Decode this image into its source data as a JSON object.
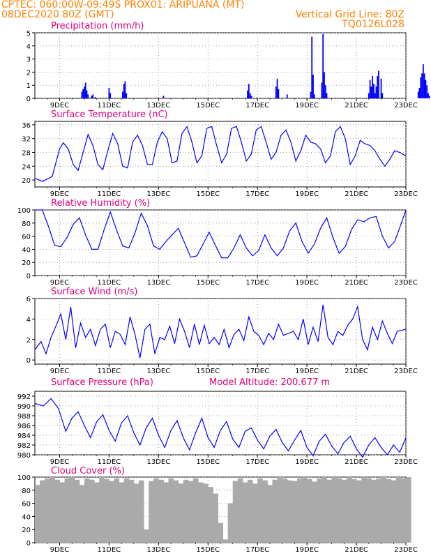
{
  "header": {
    "line1": "CPTEC:   060:00W-09:49S   PROX01: ARIPUANA (MT)",
    "line2_left": "08DEC2020 80Z (GMT)",
    "line2_right": "Vertical Grid Line: 80Z",
    "line3_right": "TQ0126L028"
  },
  "colors": {
    "header": "#ff7f00",
    "title": "#e0007a",
    "line": "#0000ff",
    "bar": "#0000ff",
    "cloud": "#aaaaaa"
  },
  "x_ticks": [
    "9DEC",
    "11DEC",
    "13DEC",
    "15DEC",
    "17DEC",
    "19DEC",
    "21DEC",
    "23DEC"
  ],
  "panels": {
    "precip": {
      "title": "Precipitation (mm/h)"
    },
    "temp": {
      "title": "Surface Temperature (nC)"
    },
    "rh": {
      "title": "Relative Humidity (%)"
    },
    "wind": {
      "title": "Surface Wind (m/s)"
    },
    "pres": {
      "title": "Surface Pressure (hPa)",
      "extra": "Model Altitude: 200.677 m"
    },
    "cloud": {
      "title": "Cloud Cover (%)"
    }
  },
  "chart_data": [
    {
      "id": "precip",
      "type": "bar",
      "title": "Precipitation (mm/h)",
      "ylim": [
        0,
        5
      ],
      "yticks": [
        "0",
        "1",
        "2",
        "3",
        "4",
        "5"
      ],
      "x_unit": "day offset from 8DEC2020 00Z",
      "x": [
        1.9,
        1.95,
        2.0,
        2.05,
        2.1,
        2.15,
        2.3,
        2.35,
        2.45,
        3.0,
        3.05,
        3.55,
        3.6,
        3.65,
        3.7,
        5.2,
        8.6,
        8.65,
        8.7,
        8.75,
        9.75,
        9.8,
        9.85,
        10.2,
        11.15,
        11.2,
        11.25,
        11.3,
        11.6,
        11.65,
        11.7,
        11.75,
        11.8,
        13.5,
        13.55,
        13.6,
        13.65,
        13.7,
        13.75,
        13.8,
        13.85,
        13.9,
        14.0,
        14.05,
        15.5,
        15.55,
        15.6,
        15.65,
        15.7,
        15.75,
        15.8,
        15.85,
        15.9,
        15.95
      ],
      "values": [
        0.5,
        0.7,
        0.9,
        1.2,
        0.6,
        0.3,
        0.2,
        0.3,
        0.1,
        0.8,
        0.4,
        0.5,
        1.1,
        1.3,
        0.4,
        0.2,
        0.6,
        1.1,
        0.4,
        0.2,
        0.9,
        1.5,
        0.7,
        0.3,
        0.5,
        4.7,
        1.8,
        0.3,
        1.2,
        4.9,
        2.0,
        1.0,
        0.4,
        0.4,
        1.4,
        0.9,
        1.7,
        1.1,
        0.4,
        0.9,
        1.7,
        2.1,
        1.5,
        0.4,
        0.5,
        0.8,
        1.6,
        1.9,
        2.6,
        1.9,
        1.4,
        1.0,
        0.4,
        0.2
      ]
    },
    {
      "id": "temp",
      "type": "line",
      "title": "Surface Temperature (nC)",
      "ylim": [
        18,
        37
      ],
      "yticks": [
        "20",
        "24",
        "28",
        "32",
        "36"
      ],
      "x": [
        0,
        0.3,
        0.7,
        1.0,
        1.15,
        1.35,
        1.55,
        1.75,
        1.95,
        2.15,
        2.35,
        2.55,
        2.75,
        2.95,
        3.15,
        3.35,
        3.55,
        3.75,
        3.95,
        4.15,
        4.35,
        4.55,
        4.75,
        4.95,
        5.15,
        5.35,
        5.55,
        5.75,
        5.95,
        6.15,
        6.35,
        6.55,
        6.75,
        6.95,
        7.15,
        7.35,
        7.55,
        7.75,
        7.95,
        8.15,
        8.35,
        8.55,
        8.75,
        8.95,
        9.15,
        9.35,
        9.55,
        9.75,
        9.95,
        10.15,
        10.35,
        10.55,
        10.75,
        10.95,
        11.15,
        11.35,
        11.55,
        11.75,
        11.95,
        12.15,
        12.35,
        12.55,
        12.75,
        12.95,
        13.15,
        13.35,
        13.55,
        13.75,
        13.95,
        14.15,
        14.35,
        14.55,
        14.75,
        15.0
      ],
      "values": [
        20.5,
        19.6,
        21.0,
        29.0,
        30.8,
        29.0,
        24.5,
        22.8,
        28.0,
        33.2,
        30.0,
        24.5,
        23.0,
        28.5,
        33.5,
        30.5,
        24.0,
        23.5,
        31.0,
        33.0,
        30.0,
        24.5,
        24.5,
        31.0,
        34.0,
        32.0,
        25.0,
        25.5,
        33.5,
        35.5,
        31.0,
        25.0,
        27.0,
        35.0,
        35.5,
        30.0,
        25.0,
        27.5,
        35.0,
        35.5,
        31.0,
        25.5,
        27.5,
        34.5,
        35.5,
        31.0,
        26.0,
        28.0,
        33.0,
        34.5,
        31.0,
        25.5,
        28.5,
        33.0,
        31.0,
        30.5,
        29.0,
        25.0,
        27.0,
        34.0,
        35.5,
        32.0,
        24.5,
        27.0,
        31.5,
        30.5,
        30.0,
        28.5,
        26.0,
        24.0,
        26.0,
        28.5,
        28.0,
        27.0
      ]
    },
    {
      "id": "rh",
      "type": "line",
      "title": "Relative Humidity (%)",
      "ylim": [
        0,
        100
      ],
      "yticks": [
        "0",
        "20",
        "40",
        "60",
        "80",
        "100"
      ],
      "x": [
        0,
        0.3,
        0.55,
        0.8,
        1.05,
        1.3,
        1.55,
        1.8,
        2.05,
        2.3,
        2.55,
        2.8,
        3.05,
        3.3,
        3.55,
        3.8,
        4.05,
        4.3,
        4.55,
        4.8,
        5.05,
        5.3,
        5.55,
        5.8,
        6.05,
        6.3,
        6.55,
        6.8,
        7.05,
        7.3,
        7.55,
        7.8,
        8.05,
        8.3,
        8.55,
        8.8,
        9.05,
        9.3,
        9.55,
        9.8,
        10.05,
        10.3,
        10.55,
        10.8,
        11.05,
        11.3,
        11.55,
        11.8,
        12.05,
        12.3,
        12.55,
        12.8,
        13.05,
        13.3,
        13.55,
        13.8,
        14.05,
        14.3,
        14.55,
        14.8,
        15.0
      ],
      "values": [
        100,
        100,
        75,
        46,
        44,
        58,
        78,
        88,
        62,
        40,
        40,
        70,
        97,
        70,
        45,
        42,
        65,
        95,
        76,
        45,
        40,
        52,
        62,
        72,
        50,
        28,
        30,
        48,
        66,
        46,
        27,
        27,
        42,
        62,
        42,
        30,
        38,
        62,
        42,
        30,
        42,
        68,
        80,
        52,
        34,
        48,
        72,
        88,
        58,
        34,
        44,
        70,
        85,
        82,
        88,
        90,
        60,
        42,
        52,
        78,
        100
      ]
    },
    {
      "id": "wind",
      "type": "line",
      "title": "Surface Wind (m/s)",
      "ylim": [
        -0.4,
        6
      ],
      "yticks": [
        "0",
        "2",
        "4",
        "6"
      ],
      "x": [
        0,
        0.25,
        0.45,
        0.65,
        0.85,
        1.05,
        1.25,
        1.45,
        1.65,
        1.85,
        2.05,
        2.25,
        2.45,
        2.65,
        2.85,
        3.05,
        3.25,
        3.45,
        3.65,
        3.85,
        4.05,
        4.25,
        4.45,
        4.65,
        4.85,
        5.05,
        5.25,
        5.45,
        5.65,
        5.85,
        6.05,
        6.25,
        6.45,
        6.65,
        6.85,
        7.05,
        7.25,
        7.45,
        7.65,
        7.85,
        8.05,
        8.25,
        8.45,
        8.65,
        8.85,
        9.05,
        9.25,
        9.45,
        9.65,
        9.85,
        10.05,
        10.25,
        10.45,
        10.65,
        10.85,
        11.05,
        11.25,
        11.45,
        11.65,
        11.85,
        12.05,
        12.25,
        12.45,
        12.65,
        12.85,
        13.05,
        13.25,
        13.45,
        13.65,
        13.85,
        14.05,
        14.25,
        14.45,
        14.65,
        15.0
      ],
      "values": [
        1.0,
        1.8,
        0.6,
        2.2,
        3.3,
        4.5,
        2.0,
        5.2,
        1.2,
        3.6,
        2.2,
        3.0,
        1.4,
        3.0,
        3.5,
        1.2,
        2.8,
        2.5,
        1.5,
        4.2,
        2.5,
        0.2,
        3.0,
        3.5,
        0.6,
        2.2,
        2.0,
        3.3,
        1.6,
        4.0,
        2.8,
        1.2,
        3.5,
        1.5,
        3.4,
        1.6,
        2.2,
        1.5,
        3.0,
        1.2,
        2.5,
        3.0,
        1.9,
        4.2,
        2.8,
        2.4,
        1.5,
        2.6,
        2.0,
        3.5,
        2.4,
        2.6,
        2.8,
        2.0,
        4.0,
        1.5,
        3.2,
        1.8,
        5.4,
        2.2,
        1.5,
        2.8,
        2.4,
        3.4,
        4.0,
        5.2,
        2.0,
        1.0,
        3.2,
        2.0,
        3.8,
        2.6,
        1.6,
        2.8,
        3.0
      ]
    },
    {
      "id": "pres",
      "type": "line",
      "title": "Surface Pressure (hPa)",
      "ylim": [
        980,
        993
      ],
      "yticks": [
        "980",
        "982",
        "984",
        "986",
        "988",
        "990",
        "992"
      ],
      "x": [
        0,
        0.35,
        0.65,
        0.95,
        1.25,
        1.5,
        1.75,
        2.0,
        2.25,
        2.5,
        2.75,
        3.0,
        3.25,
        3.5,
        3.75,
        4.0,
        4.25,
        4.5,
        4.75,
        5.0,
        5.25,
        5.5,
        5.75,
        6.0,
        6.25,
        6.5,
        6.75,
        7.0,
        7.25,
        7.5,
        7.75,
        8.0,
        8.25,
        8.5,
        8.75,
        9.0,
        9.25,
        9.5,
        9.75,
        10.0,
        10.25,
        10.5,
        10.75,
        11.0,
        11.25,
        11.5,
        11.75,
        12.0,
        12.25,
        12.5,
        12.75,
        13.0,
        13.25,
        13.5,
        13.75,
        14.0,
        14.25,
        14.5,
        14.75,
        15.0
      ],
      "values": [
        990.5,
        990.0,
        991.5,
        989.5,
        984.8,
        987.5,
        988.8,
        986.0,
        983.5,
        986.8,
        988.2,
        985.0,
        982.8,
        986.5,
        988.0,
        984.5,
        982.0,
        985.5,
        987.5,
        984.0,
        981.5,
        985.0,
        987.0,
        983.5,
        981.0,
        984.5,
        987.5,
        983.5,
        981.5,
        985.0,
        986.8,
        983.2,
        981.5,
        984.8,
        985.5,
        983.0,
        981.2,
        983.8,
        985.2,
        982.5,
        980.8,
        983.0,
        985.0,
        981.5,
        979.8,
        982.8,
        984.2,
        981.8,
        980.2,
        982.5,
        983.8,
        981.2,
        979.5,
        982.0,
        983.5,
        981.5,
        980.0,
        982.0,
        980.5,
        983.5
      ]
    },
    {
      "id": "cloud",
      "type": "area",
      "title": "Cloud Cover (%)",
      "ylim": [
        0,
        100
      ],
      "yticks": [
        "0",
        "20",
        "40",
        "60",
        "80",
        "100"
      ],
      "x": [
        0,
        0.2,
        0.4,
        0.6,
        0.8,
        1.0,
        1.2,
        1.4,
        1.6,
        1.8,
        2.0,
        2.2,
        2.4,
        2.6,
        2.8,
        3.0,
        3.2,
        3.4,
        3.6,
        3.8,
        4.0,
        4.2,
        4.4,
        4.6,
        4.8,
        5.0,
        5.2,
        5.4,
        5.6,
        5.8,
        6.0,
        6.2,
        6.4,
        6.6,
        6.8,
        7.0,
        7.2,
        7.4,
        7.6,
        7.8,
        8.0,
        8.2,
        8.4,
        8.6,
        8.8,
        9.0,
        9.2,
        9.4,
        9.6,
        9.8,
        10.0,
        10.2,
        10.4,
        10.6,
        10.8,
        11.0,
        11.2,
        11.4,
        11.6,
        11.8,
        12.0,
        12.2,
        12.4,
        12.6,
        12.8,
        13.0,
        13.2,
        13.4,
        13.6,
        13.8,
        14.0,
        14.2,
        14.4,
        14.6,
        14.8,
        15.0
      ],
      "values": [
        88,
        95,
        98,
        100,
        96,
        92,
        98,
        100,
        96,
        88,
        98,
        96,
        92,
        100,
        97,
        94,
        98,
        92,
        98,
        96,
        90,
        95,
        20,
        94,
        98,
        96,
        92,
        98,
        95,
        90,
        96,
        94,
        98,
        92,
        90,
        85,
        75,
        30,
        5,
        60,
        94,
        98,
        92,
        96,
        90,
        98,
        95,
        88,
        96,
        100,
        98,
        95,
        94,
        98,
        100,
        97,
        93,
        98,
        100,
        96,
        100,
        98,
        96,
        100,
        97,
        95,
        100,
        98,
        96,
        98,
        100,
        97,
        95,
        100,
        98,
        100
      ]
    }
  ]
}
